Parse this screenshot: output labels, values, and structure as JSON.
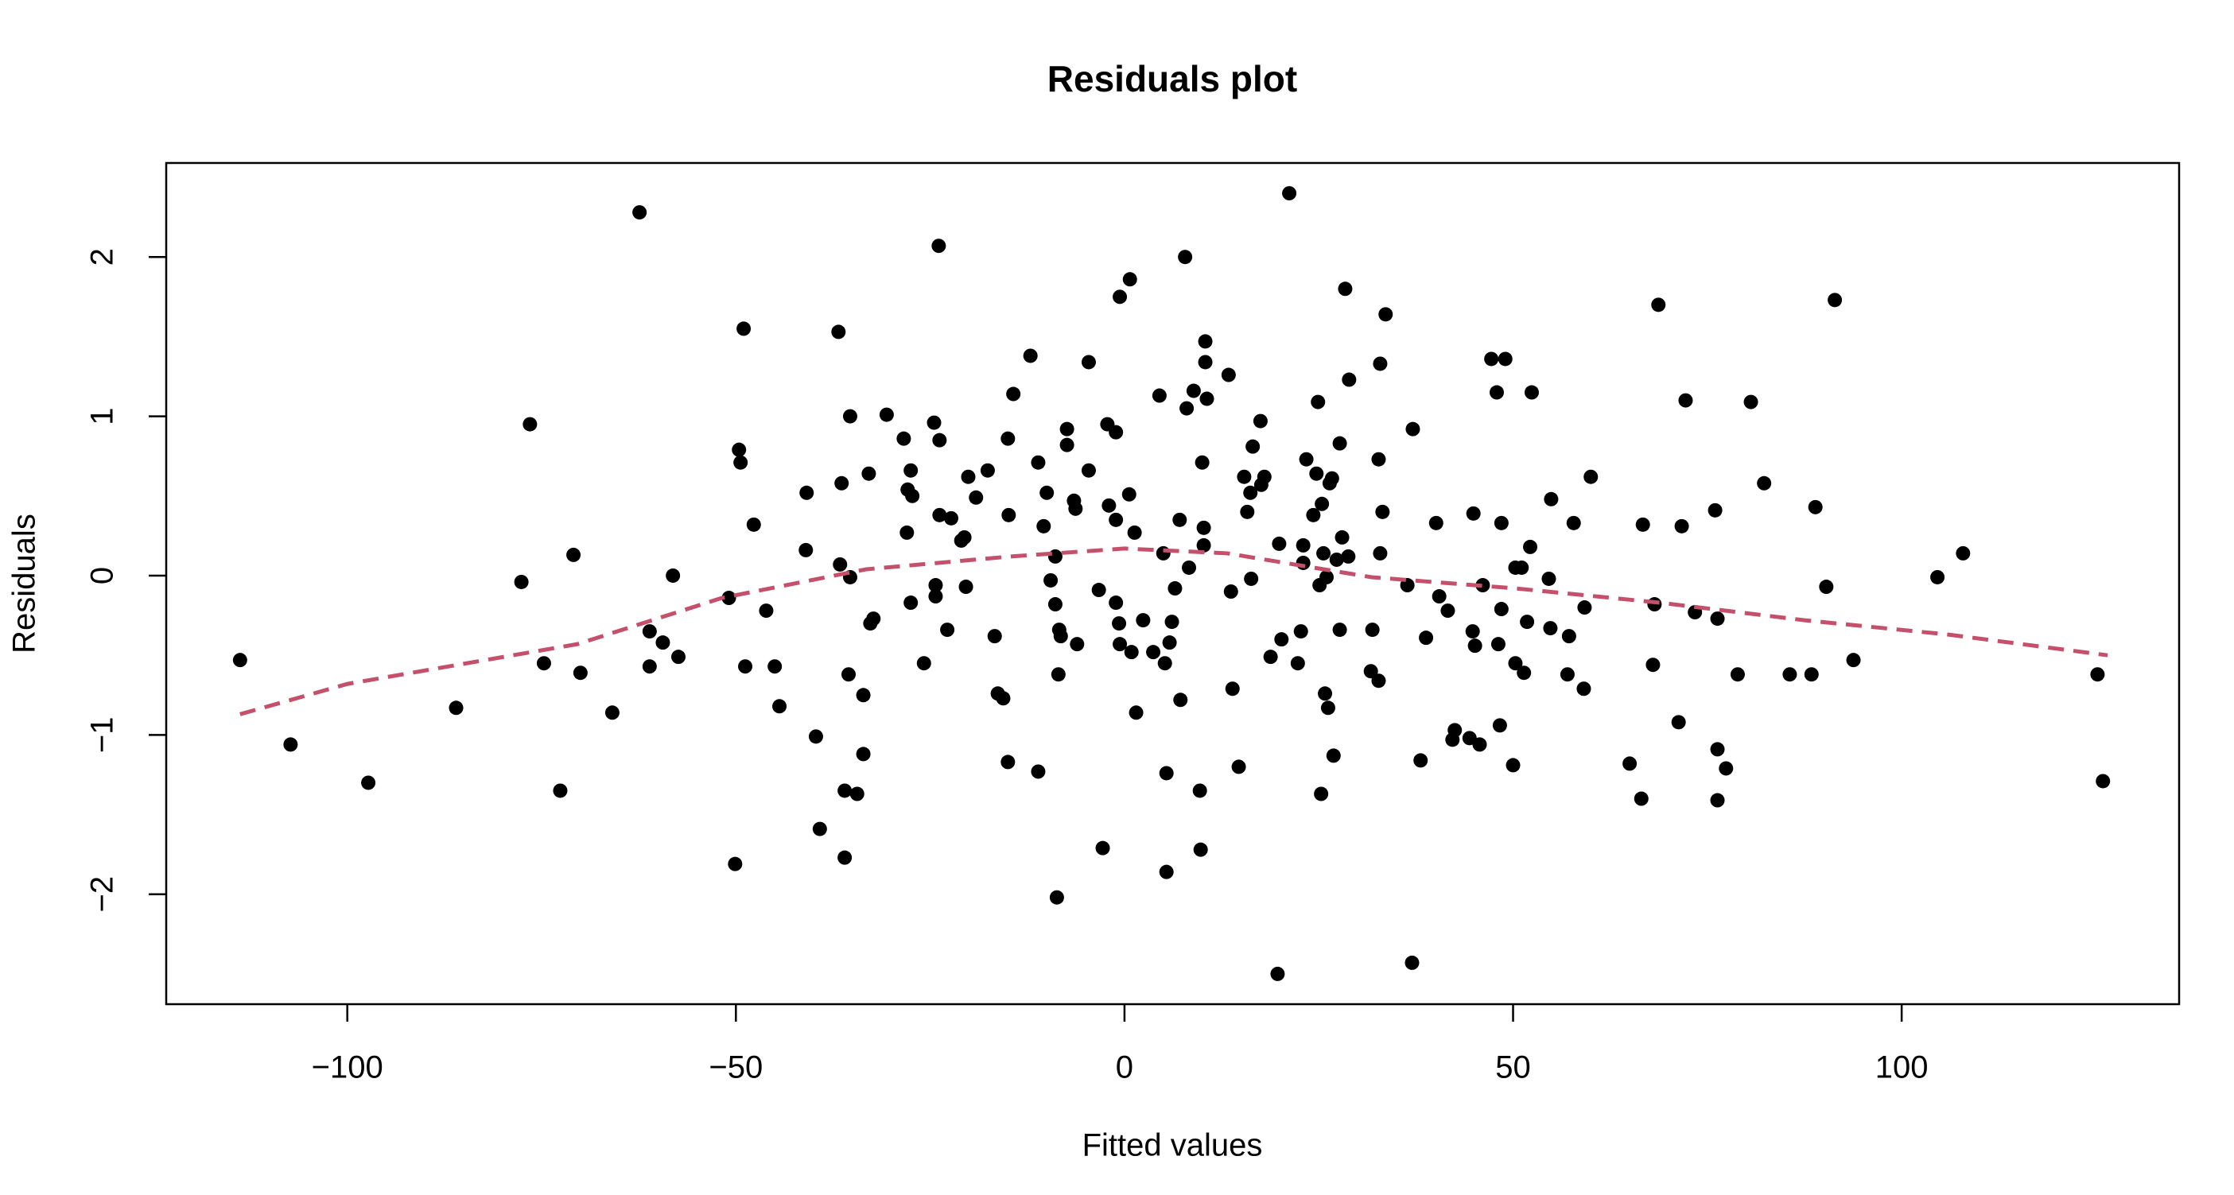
{
  "chart_data": {
    "type": "scatter",
    "title": "Residuals plot",
    "x_label": "Fitted values",
    "y_label": "Residuals",
    "xlim": [
      -123.3,
      135.7
    ],
    "ylim": [
      -2.69,
      2.59
    ],
    "xticks": [
      {
        "value": -100,
        "label": "−100"
      },
      {
        "value": -50,
        "label": "−50"
      },
      0,
      50,
      100
    ],
    "yticks": [
      {
        "value": -2,
        "label": "−2"
      },
      {
        "value": -1,
        "label": "−1"
      },
      0,
      1,
      2
    ],
    "series": [
      {
        "mark": "point",
        "color": "#000000",
        "x": [
          -113.8,
          -107.3,
          -97.3,
          -86.0,
          -77.6,
          -76.5,
          -74.7,
          -72.6,
          -70.9,
          -70.0,
          -65.9,
          -62.4,
          -61.1,
          -61.1,
          -59.4,
          -58.1,
          -57.4,
          -50.9,
          -50.1,
          -49.6,
          -49.4,
          -49.0,
          -48.8,
          -47.7,
          -46.1,
          -45.0,
          -44.4,
          -41.0,
          -40.9,
          -39.7,
          -39.2,
          -36.8,
          -36.6,
          -36.4,
          -36.0,
          -36.0,
          -35.5,
          -35.3,
          -35.3,
          -34.4,
          -33.6,
          -33.6,
          -32.9,
          -32.7,
          -32.3,
          -30.6,
          -28.4,
          -28.0,
          -27.9,
          -27.5,
          -27.3,
          -27.5,
          -25.8,
          -24.5,
          -24.3,
          -24.3,
          -23.9,
          -23.8,
          -23.8,
          -22.8,
          -22.3,
          -21.0,
          -20.6,
          -20.4,
          -20.1,
          -19.1,
          -17.6,
          -16.7,
          -16.3,
          -15.6,
          -15.0,
          -15.0,
          -14.9,
          -14.3,
          -12.1,
          -11.1,
          -11.1,
          -10.4,
          -10.0,
          -9.5,
          -8.9,
          -8.9,
          -8.7,
          -8.5,
          -8.4,
          -8.2,
          -7.4,
          -7.4,
          -6.5,
          -6.3,
          -6.1,
          -4.6,
          -4.6,
          -3.3,
          -2.8,
          -2.2,
          -2.0,
          -1.1,
          -1.1,
          -1.1,
          -0.7,
          -0.6,
          -0.6,
          0.6,
          0.7,
          0.9,
          1.3,
          1.5,
          2.4,
          3.7,
          4.5,
          5.0,
          5.2,
          5.4,
          5.4,
          5.8,
          6.1,
          6.5,
          7.1,
          7.2,
          7.8,
          8.0,
          8.3,
          8.9,
          9.7,
          9.8,
          10.0,
          10.2,
          10.2,
          10.4,
          10.4,
          10.6,
          13.4,
          13.7,
          13.9,
          14.7,
          15.4,
          15.8,
          16.2,
          16.3,
          16.5,
          17.5,
          17.6,
          18.0,
          18.8,
          19.7,
          19.9,
          20.2,
          21.2,
          22.3,
          22.7,
          23.0,
          23.0,
          23.4,
          24.3,
          24.7,
          24.9,
          25.1,
          25.3,
          25.4,
          25.6,
          25.8,
          26.0,
          26.2,
          26.4,
          26.7,
          26.9,
          27.3,
          27.7,
          27.7,
          28.0,
          28.4,
          28.8,
          28.9,
          31.7,
          31.9,
          32.7,
          32.9,
          32.9,
          32.7,
          33.2,
          33.6,
          36.4,
          37.0,
          37.1,
          38.1,
          38.8,
          40.1,
          40.5,
          41.6,
          42.2,
          42.5,
          44.4,
          44.8,
          44.9,
          45.1,
          45.7,
          46.1,
          47.2,
          47.9,
          48.1,
          48.3,
          48.5,
          48.5,
          49.0,
          50.0,
          50.3,
          50.3,
          51.1,
          51.4,
          51.8,
          52.2,
          52.4,
          54.6,
          54.8,
          54.9,
          57.0,
          57.2,
          57.8,
          59.1,
          59.2,
          60.0,
          65.0,
          66.5,
          66.7,
          68.0,
          68.2,
          68.7,
          71.3,
          71.7,
          72.2,
          73.4,
          76.0,
          76.3,
          76.3,
          76.3,
          77.4,
          78.9,
          80.6,
          82.3,
          85.6,
          88.4,
          88.9,
          90.3,
          91.4,
          93.8,
          104.6,
          107.9,
          125.2,
          125.9
        ],
        "values": [
          -0.53,
          -1.06,
          -1.3,
          -0.83,
          -0.04,
          0.95,
          -0.55,
          -1.35,
          0.13,
          -0.61,
          -0.86,
          2.28,
          -0.35,
          -0.57,
          -0.42,
          0.0,
          -0.51,
          -0.14,
          -1.81,
          0.79,
          0.71,
          1.55,
          -0.57,
          0.32,
          -0.22,
          -0.57,
          -0.82,
          0.16,
          0.52,
          -1.01,
          -1.59,
          1.53,
          0.07,
          0.58,
          -1.35,
          -1.77,
          -0.62,
          1.0,
          -0.01,
          -1.37,
          -0.75,
          -1.12,
          0.64,
          -0.3,
          -0.27,
          1.01,
          0.86,
          0.27,
          0.54,
          0.66,
          0.5,
          -0.17,
          -0.55,
          0.96,
          -0.06,
          -0.13,
          2.07,
          0.85,
          0.38,
          -0.34,
          0.36,
          0.22,
          0.24,
          -0.07,
          0.62,
          0.49,
          0.66,
          -0.38,
          -0.74,
          -0.77,
          0.86,
          -1.17,
          0.38,
          1.14,
          1.38,
          0.71,
          -1.23,
          0.31,
          0.52,
          -0.03,
          0.12,
          -0.18,
          -2.02,
          -0.62,
          -0.34,
          -0.38,
          0.92,
          0.82,
          0.47,
          0.42,
          -0.43,
          1.34,
          0.66,
          -0.09,
          -1.71,
          0.95,
          0.44,
          0.9,
          0.35,
          -0.17,
          -0.3,
          -0.43,
          1.75,
          0.51,
          1.86,
          -0.48,
          0.27,
          -0.86,
          -0.28,
          -0.48,
          1.13,
          0.14,
          -0.55,
          -1.24,
          -1.86,
          -0.42,
          -0.29,
          -0.08,
          0.35,
          -0.78,
          2.0,
          1.05,
          0.05,
          1.16,
          -1.35,
          -1.72,
          0.71,
          0.19,
          0.3,
          1.47,
          1.34,
          1.11,
          1.26,
          -0.1,
          -0.71,
          -1.2,
          0.62,
          0.4,
          0.52,
          -0.02,
          0.81,
          0.97,
          0.57,
          0.62,
          -0.51,
          -2.5,
          0.2,
          -0.4,
          2.4,
          -0.55,
          -0.35,
          0.08,
          0.19,
          0.73,
          0.38,
          0.64,
          1.09,
          -0.06,
          -1.37,
          0.45,
          0.14,
          -0.74,
          -0.01,
          -0.83,
          0.58,
          0.61,
          -1.13,
          0.1,
          0.83,
          -0.34,
          0.24,
          1.8,
          0.12,
          1.23,
          -0.6,
          -0.34,
          0.73,
          1.33,
          0.14,
          -0.66,
          0.4,
          1.64,
          -0.06,
          -2.43,
          0.92,
          -1.16,
          -0.39,
          0.33,
          -0.13,
          -0.22,
          -1.03,
          -0.97,
          -1.02,
          -0.35,
          0.39,
          -0.44,
          -1.06,
          -0.06,
          1.36,
          1.15,
          -0.43,
          -0.94,
          0.33,
          -0.21,
          1.36,
          -1.19,
          -0.55,
          0.05,
          0.05,
          -0.61,
          -0.29,
          0.18,
          1.15,
          -0.02,
          -0.33,
          0.48,
          -0.62,
          -0.38,
          0.33,
          -0.71,
          -0.2,
          0.62,
          -1.18,
          -1.4,
          0.32,
          -0.56,
          -0.18,
          1.7,
          -0.92,
          0.31,
          1.1,
          -0.23,
          0.41,
          -0.27,
          -1.09,
          -1.41,
          -1.21,
          -0.62,
          1.09,
          0.58,
          -0.62,
          -0.62,
          0.43,
          -0.07,
          1.73,
          -0.53,
          -0.01,
          0.14,
          -0.62,
          -1.29
        ]
      },
      {
        "mark": "dashed-line",
        "color": "#c4506b",
        "x": [
          -113.8,
          -100,
          -70.4,
          -51.8,
          -33.2,
          -14.7,
          0,
          13.2,
          31.8,
          50.3,
          68.9,
          87.5,
          106,
          126.5
        ],
        "values": [
          -0.87,
          -0.68,
          -0.43,
          -0.14,
          0.04,
          0.12,
          0.17,
          0.14,
          -0.01,
          -0.08,
          -0.17,
          -0.28,
          -0.37,
          -0.5
        ]
      }
    ]
  }
}
